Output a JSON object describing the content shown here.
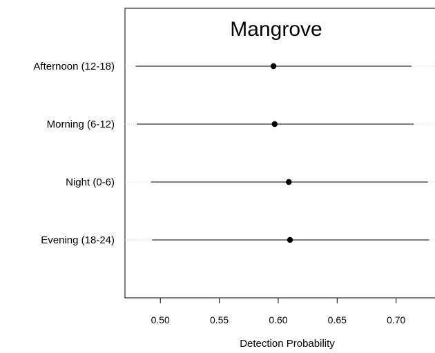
{
  "chart_data": {
    "type": "scatter",
    "title": "Mangrove",
    "xlabel": "Detection Probability",
    "ylabel": "",
    "xlim": [
      0.47,
      0.733
    ],
    "x_ticks": [
      "0.50",
      "0.55",
      "0.60",
      "0.65",
      "0.70"
    ],
    "grid": false,
    "categories": [
      "Afternoon (12-18)",
      "Morning (6-12)",
      "Night (0-6)",
      "Evening (18-24)"
    ],
    "series": [
      {
        "points": [
          {
            "category": "Afternoon (12-18)",
            "estimate": 0.596,
            "lower": 0.479,
            "upper": 0.713
          },
          {
            "category": "Morning (6-12)",
            "estimate": 0.597,
            "lower": 0.48,
            "upper": 0.715
          },
          {
            "category": "Night (0-6)",
            "estimate": 0.609,
            "lower": 0.492,
            "upper": 0.727
          },
          {
            "category": "Evening (18-24)",
            "estimate": 0.61,
            "lower": 0.493,
            "upper": 0.728
          }
        ]
      }
    ]
  }
}
